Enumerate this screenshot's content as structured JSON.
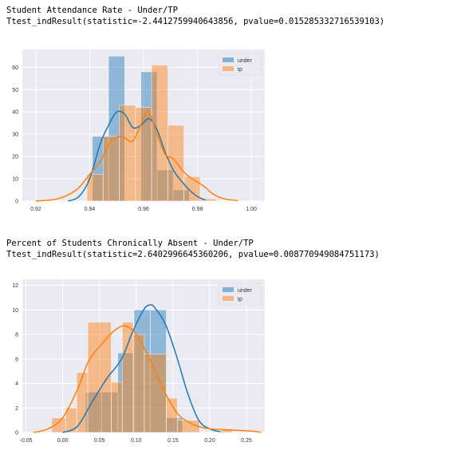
{
  "output": [
    {
      "title_line": "Student Attendance Rate - Under/TP",
      "stat_line": "Ttest_indResult(statistic=-2.4412759940643856, pvalue=0.015285332716539103)"
    },
    {
      "title_line": "Percent of Students Chronically Absent - Under/TP",
      "stat_line": "Ttest_indResult(statistic=2.6402996645360206, pvalue=0.008770949084751173)"
    }
  ],
  "colors": {
    "under": "#1f77b4",
    "tp": "#ff7f0e",
    "plot_bg": "#eaeaf2",
    "grid": "#ffffff"
  },
  "chart_data": [
    {
      "type": "histogram",
      "title": "",
      "xlabel": "",
      "ylabel": "",
      "xlim": [
        0.915,
        1.005
      ],
      "ylim": [
        0,
        68
      ],
      "xticks": [
        0.92,
        0.94,
        0.96,
        0.98,
        1.0
      ],
      "xtick_labels": [
        "0.92",
        "0.94",
        "0.96",
        "0.98",
        "1.00"
      ],
      "yticks": [
        0,
        10,
        20,
        30,
        40,
        50,
        60
      ],
      "ytick_labels": [
        "0",
        "10",
        "20",
        "30",
        "40",
        "50",
        "60"
      ],
      "grid": true,
      "legend_position": "top-right",
      "series": [
        {
          "name": "under",
          "bins": [
            {
              "x0": 0.941,
              "x1": 0.947,
              "value": 29
            },
            {
              "x0": 0.947,
              "x1": 0.953,
              "value": 65
            },
            {
              "x0": 0.959,
              "x1": 0.965,
              "value": 58
            },
            {
              "x0": 0.965,
              "x1": 0.971,
              "value": 14
            },
            {
              "x0": 0.971,
              "x1": 0.977,
              "value": 5
            }
          ],
          "kde": [
            [
              0.932,
              0
            ],
            [
              0.936,
              2
            ],
            [
              0.94,
              10
            ],
            [
              0.944,
              26
            ],
            [
              0.947,
              34
            ],
            [
              0.95,
              40
            ],
            [
              0.953,
              39
            ],
            [
              0.956,
              33
            ],
            [
              0.959,
              34
            ],
            [
              0.962,
              37
            ],
            [
              0.965,
              32
            ],
            [
              0.968,
              22
            ],
            [
              0.971,
              14
            ],
            [
              0.974,
              9
            ],
            [
              0.977,
              5
            ],
            [
              0.98,
              2
            ],
            [
              0.983,
              0.5
            ]
          ]
        },
        {
          "name": "tp",
          "bins": [
            {
              "x0": 0.939,
              "x1": 0.945,
              "value": 12
            },
            {
              "x0": 0.945,
              "x1": 0.951,
              "value": 29
            },
            {
              "x0": 0.951,
              "x1": 0.957,
              "value": 43
            },
            {
              "x0": 0.957,
              "x1": 0.963,
              "value": 42
            },
            {
              "x0": 0.963,
              "x1": 0.969,
              "value": 61
            },
            {
              "x0": 0.969,
              "x1": 0.975,
              "value": 34
            },
            {
              "x0": 0.975,
              "x1": 0.981,
              "value": 11
            },
            {
              "x0": 0.981,
              "x1": 0.987,
              "value": 1
            }
          ],
          "kde": [
            [
              0.92,
              0
            ],
            [
              0.928,
              1
            ],
            [
              0.935,
              5
            ],
            [
              0.94,
              12
            ],
            [
              0.944,
              18
            ],
            [
              0.948,
              27
            ],
            [
              0.952,
              29
            ],
            [
              0.956,
              27
            ],
            [
              0.96,
              37
            ],
            [
              0.962,
              40
            ],
            [
              0.965,
              30
            ],
            [
              0.968,
              21
            ],
            [
              0.971,
              19
            ],
            [
              0.975,
              13
            ],
            [
              0.978,
              10
            ],
            [
              0.982,
              7
            ],
            [
              0.986,
              3
            ],
            [
              0.99,
              1
            ],
            [
              0.995,
              0.2
            ]
          ]
        }
      ]
    },
    {
      "type": "histogram",
      "title": "",
      "xlabel": "",
      "ylabel": "",
      "xlim": [
        -0.055,
        0.275
      ],
      "ylim": [
        0,
        12.5
      ],
      "xticks": [
        -0.05,
        0.0,
        0.05,
        0.1,
        0.15,
        0.2,
        0.25
      ],
      "xtick_labels": [
        "-0.05",
        "0.00",
        "0.05",
        "0.10",
        "0.15",
        "0.20",
        "0.25"
      ],
      "yticks": [
        0,
        2,
        4,
        6,
        8,
        10,
        12
      ],
      "ytick_labels": [
        "0",
        "2",
        "4",
        "6",
        "8",
        "10",
        "12"
      ],
      "grid": true,
      "legend_position": "top-right",
      "series": [
        {
          "name": "under",
          "bins": [
            {
              "x0": 0.031,
              "x1": 0.053,
              "value": 3.3
            },
            {
              "x0": 0.053,
              "x1": 0.075,
              "value": 3.3
            },
            {
              "x0": 0.075,
              "x1": 0.097,
              "value": 6.5
            },
            {
              "x0": 0.097,
              "x1": 0.119,
              "value": 10
            },
            {
              "x0": 0.119,
              "x1": 0.141,
              "value": 10
            },
            {
              "x0": 0.141,
              "x1": 0.163,
              "value": 1.2
            }
          ],
          "kde": [
            [
              0.0,
              0
            ],
            [
              0.02,
              0.5
            ],
            [
              0.04,
              2.5
            ],
            [
              0.06,
              4.4
            ],
            [
              0.08,
              6.0
            ],
            [
              0.095,
              8.2
            ],
            [
              0.11,
              10.0
            ],
            [
              0.118,
              10.4
            ],
            [
              0.125,
              10.2
            ],
            [
              0.14,
              8.8
            ],
            [
              0.155,
              6.2
            ],
            [
              0.17,
              3.2
            ],
            [
              0.185,
              1.0
            ],
            [
              0.2,
              0.3
            ],
            [
              0.215,
              0.05
            ]
          ]
        },
        {
          "name": "tp",
          "bins": [
            {
              "x0": -0.015,
              "x1": 0.004,
              "value": 1.2
            },
            {
              "x0": 0.004,
              "x1": 0.019,
              "value": 2.0
            },
            {
              "x0": 0.019,
              "x1": 0.034,
              "value": 4.9
            },
            {
              "x0": 0.034,
              "x1": 0.066,
              "value": 9
            },
            {
              "x0": 0.066,
              "x1": 0.081,
              "value": 4.1
            },
            {
              "x0": 0.081,
              "x1": 0.096,
              "value": 9
            },
            {
              "x0": 0.096,
              "x1": 0.111,
              "value": 8
            },
            {
              "x0": 0.111,
              "x1": 0.141,
              "value": 6.4
            },
            {
              "x0": 0.141,
              "x1": 0.156,
              "value": 2.8
            },
            {
              "x0": 0.156,
              "x1": 0.186,
              "value": 1.0
            },
            {
              "x0": 0.216,
              "x1": 0.231,
              "value": 0.3
            }
          ],
          "kde": [
            [
              -0.04,
              0
            ],
            [
              -0.02,
              0.3
            ],
            [
              0.0,
              1.2
            ],
            [
              0.02,
              3.5
            ],
            [
              0.035,
              5.8
            ],
            [
              0.05,
              7.0
            ],
            [
              0.07,
              8.3
            ],
            [
              0.085,
              8.7
            ],
            [
              0.1,
              8.0
            ],
            [
              0.115,
              6.4
            ],
            [
              0.13,
              4.4
            ],
            [
              0.145,
              2.6
            ],
            [
              0.16,
              1.3
            ],
            [
              0.18,
              0.6
            ],
            [
              0.2,
              0.3
            ],
            [
              0.23,
              0.2
            ],
            [
              0.26,
              0.1
            ],
            [
              0.27,
              0
            ]
          ]
        }
      ]
    }
  ]
}
